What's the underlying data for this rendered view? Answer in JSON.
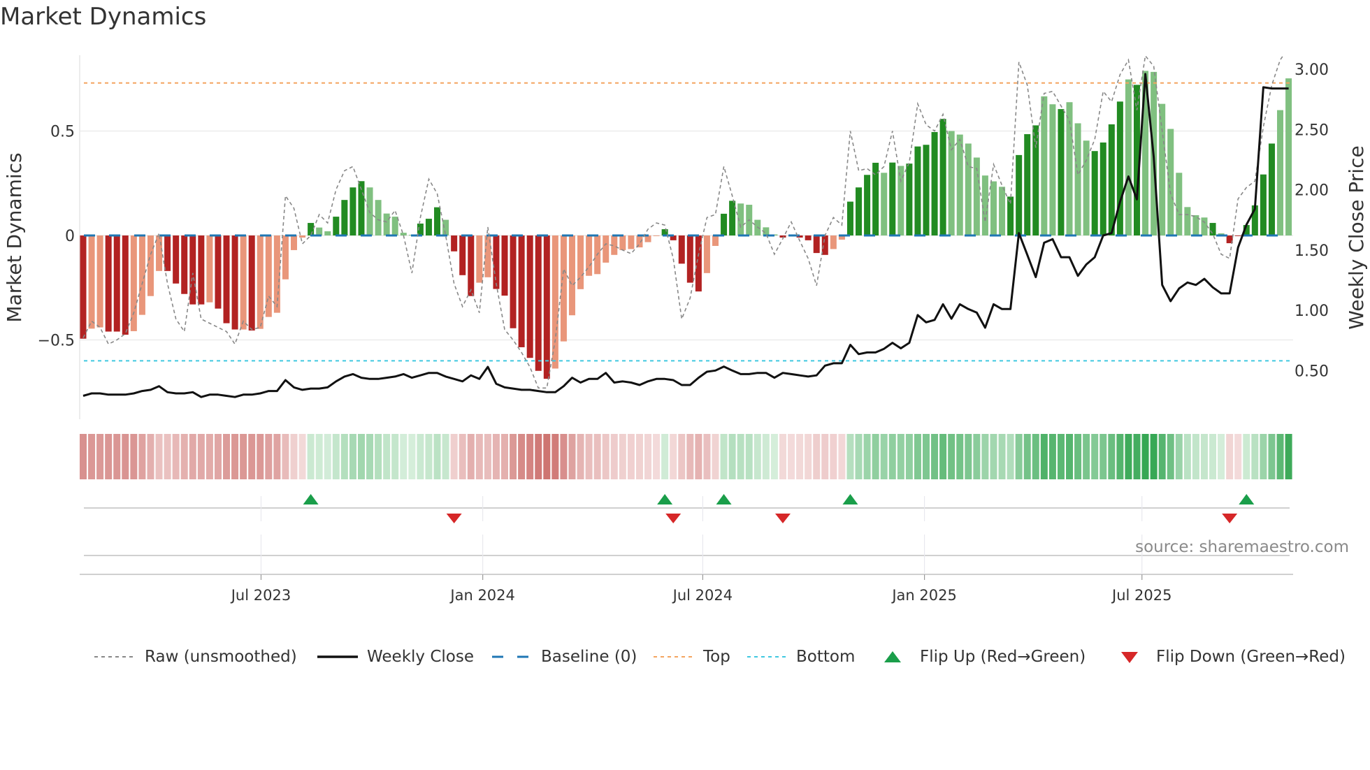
{
  "title": "Market Dynamics",
  "source": "source: sharemaestro.com",
  "legend": [
    {
      "key": "raw",
      "label": "Raw (unsmoothed)"
    },
    {
      "key": "close",
      "label": "Weekly Close"
    },
    {
      "key": "baseline",
      "label": "Baseline (0)"
    },
    {
      "key": "top",
      "label": "Top"
    },
    {
      "key": "bottom",
      "label": "Bottom"
    },
    {
      "key": "flip_up",
      "label": "Flip Up (Red→Green)"
    },
    {
      "key": "flip_down",
      "label": "Flip Down (Green→Red)"
    }
  ],
  "colors": {
    "bar_strong_pos": "#228b22",
    "bar_weak_pos": "#80c080",
    "bar_strong_neg": "#b22222",
    "bar_weak_neg": "#e9967a",
    "raw": "#888888",
    "close": "#111111",
    "baseline": "#1f77b4",
    "top": "#f4a460",
    "bottom": "#40c8e0",
    "flip_up": "#1a9e4a",
    "flip_down": "#d62728"
  },
  "chart_data": {
    "type": "bar",
    "title": "Market Dynamics",
    "ylabel": "Market Dynamics",
    "y2label": "Weekly Close Price",
    "ylim": [
      -0.88,
      0.87
    ],
    "y2lim": [
      0.12,
      3.11
    ],
    "yticks": [
      {
        "v": 0.5,
        "label": "0.5"
      },
      {
        "v": 0,
        "label": "0"
      },
      {
        "v": -0.5,
        "label": "−0.5"
      }
    ],
    "y2ticks": [
      {
        "v": 3.0,
        "label": "3.00"
      },
      {
        "v": 2.5,
        "label": "2.50"
      },
      {
        "v": 2.0,
        "label": "2.00"
      },
      {
        "v": 1.5,
        "label": "1.50"
      },
      {
        "v": 1.0,
        "label": "1.00"
      },
      {
        "v": 0.5,
        "label": "0.50"
      }
    ],
    "x_ticks": [
      {
        "label": "Jul 2023",
        "week": 21.1
      },
      {
        "label": "Jan 2024",
        "week": 47.4
      },
      {
        "label": "Jul 2024",
        "week": 73.5
      },
      {
        "label": "Jan 2025",
        "week": 99.8
      },
      {
        "label": "Jul 2025",
        "week": 125.6
      }
    ],
    "top_level": 0.73,
    "bottom_level": -0.6,
    "baseline": 0,
    "grid": true,
    "legend_position": "bottom",
    "smoothed": [
      -0.494,
      -0.446,
      -0.44,
      -0.46,
      -0.46,
      -0.475,
      -0.458,
      -0.38,
      -0.29,
      -0.17,
      -0.17,
      -0.23,
      -0.28,
      -0.33,
      -0.33,
      -0.32,
      -0.35,
      -0.42,
      -0.45,
      -0.45,
      -0.455,
      -0.447,
      -0.39,
      -0.37,
      -0.21,
      -0.07,
      -0.01,
      0.06,
      0.038,
      0.02,
      0.09,
      0.17,
      0.23,
      0.26,
      0.23,
      0.17,
      0.105,
      0.09,
      0.013,
      0.003,
      0.057,
      0.08,
      0.135,
      0.075,
      -0.076,
      -0.19,
      -0.29,
      -0.226,
      -0.2,
      -0.256,
      -0.288,
      -0.444,
      -0.535,
      -0.586,
      -0.648,
      -0.686,
      -0.637,
      -0.507,
      -0.382,
      -0.257,
      -0.193,
      -0.185,
      -0.13,
      -0.093,
      -0.07,
      -0.065,
      -0.057,
      -0.032,
      -0.003,
      0.03,
      -0.023,
      -0.135,
      -0.226,
      -0.268,
      -0.18,
      -0.05,
      0.104,
      0.166,
      0.153,
      0.147,
      0.075,
      0.039,
      0.005,
      -0.01,
      -0.002,
      -0.01,
      -0.023,
      -0.084,
      -0.093,
      -0.065,
      -0.02,
      0.162,
      0.23,
      0.29,
      0.348,
      0.3,
      0.349,
      0.333,
      0.344,
      0.426,
      0.434,
      0.495,
      0.558,
      0.5,
      0.483,
      0.44,
      0.373,
      0.287,
      0.259,
      0.233,
      0.186,
      0.385,
      0.485,
      0.527,
      0.666,
      0.628,
      0.605,
      0.638,
      0.537,
      0.454,
      0.404,
      0.445,
      0.532,
      0.641,
      0.747,
      0.721,
      0.788,
      0.783,
      0.63,
      0.51,
      0.3,
      0.136,
      0.097,
      0.086,
      0.06,
      0.01,
      -0.037,
      -0.003,
      0.05,
      0.144,
      0.292,
      0.44,
      0.6,
      0.752
    ],
    "shade": "DLLDDDLLLLDDDDDLDDDLDLLLLLLDLLDDDDLLLLLLDDDLDDDLLDDDDDDDLLLLLLLLLLLLLDDDDDLLDDLLLLLDLDDDDLLDDDDLDLDDDDDLLLLLLLDDDDLLDLLLDDDDLDLLLLLLLLDLDDDDDD",
    "raw": [
      -0.49,
      -0.41,
      -0.44,
      -0.52,
      -0.5,
      -0.47,
      -0.37,
      -0.23,
      -0.09,
      0.01,
      -0.23,
      -0.4,
      -0.46,
      -0.18,
      -0.4,
      -0.42,
      -0.44,
      -0.46,
      -0.52,
      -0.41,
      -0.45,
      -0.44,
      -0.29,
      -0.34,
      0.19,
      0.13,
      -0.04,
      0,
      0.1,
      0.06,
      0.22,
      0.31,
      0.33,
      0.22,
      0.11,
      0.075,
      0.065,
      0.12,
      0,
      -0.18,
      0.086,
      0.27,
      0.2,
      0,
      -0.23,
      -0.34,
      -0.26,
      -0.37,
      0.04,
      -0.23,
      -0.45,
      -0.5,
      -0.56,
      -0.63,
      -0.73,
      -0.73,
      -0.5,
      -0.16,
      -0.24,
      -0.2,
      -0.15,
      -0.09,
      -0.04,
      -0.05,
      -0.07,
      -0.087,
      -0.04,
      0.03,
      0.06,
      0.05,
      -0.11,
      -0.4,
      -0.3,
      -0.09,
      0.086,
      0.1,
      0.33,
      0.19,
      0.04,
      0.075,
      0.04,
      0.01,
      -0.09,
      -0.015,
      0.065,
      -0.025,
      -0.11,
      -0.24,
      0,
      0.086,
      0.05,
      0.5,
      0.31,
      0.32,
      0.29,
      0.33,
      0.5,
      0.26,
      0.35,
      0.63,
      0.53,
      0.5,
      0.58,
      0.41,
      0.46,
      0.33,
      0.32,
      0.064,
      0.34,
      0.24,
      0.15,
      0.83,
      0.72,
      0.42,
      0.68,
      0.69,
      0.62,
      0.55,
      0.29,
      0.36,
      0.46,
      0.69,
      0.64,
      0.77,
      0.84,
      0.6,
      0.86,
      0.81,
      0.5,
      0.2,
      0.1,
      0.1,
      0.09,
      0.064,
      0.008,
      -0.09,
      -0.11,
      0.175,
      0.23,
      0.26,
      0.52,
      0.72,
      0.84,
      0.9
    ],
    "close": [
      0.29,
      0.31,
      0.31,
      0.3,
      0.3,
      0.3,
      0.31,
      0.33,
      0.34,
      0.37,
      0.32,
      0.31,
      0.31,
      0.32,
      0.28,
      0.3,
      0.3,
      0.29,
      0.28,
      0.3,
      0.3,
      0.31,
      0.33,
      0.33,
      0.42,
      0.36,
      0.34,
      0.35,
      0.35,
      0.36,
      0.41,
      0.45,
      0.47,
      0.44,
      0.43,
      0.43,
      0.44,
      0.45,
      0.47,
      0.44,
      0.46,
      0.48,
      0.48,
      0.45,
      0.43,
      0.41,
      0.46,
      0.43,
      0.53,
      0.39,
      0.36,
      0.35,
      0.34,
      0.34,
      0.33,
      0.32,
      0.32,
      0.37,
      0.44,
      0.4,
      0.43,
      0.43,
      0.48,
      0.4,
      0.41,
      0.4,
      0.38,
      0.41,
      0.43,
      0.43,
      0.42,
      0.38,
      0.38,
      0.44,
      0.49,
      0.5,
      0.533,
      0.5,
      0.47,
      0.47,
      0.48,
      0.48,
      0.44,
      0.48,
      0.47,
      0.46,
      0.45,
      0.46,
      0.54,
      0.56,
      0.56,
      0.713,
      0.636,
      0.65,
      0.65,
      0.68,
      0.73,
      0.684,
      0.73,
      0.96,
      0.9,
      0.92,
      1.05,
      0.93,
      1.05,
      1.01,
      0.98,
      0.855,
      1.05,
      1.01,
      1.01,
      1.64,
      1.46,
      1.275,
      1.56,
      1.59,
      1.44,
      1.44,
      1.285,
      1.38,
      1.44,
      1.62,
      1.64,
      1.9,
      2.11,
      1.92,
      2.96,
      2.27,
      1.21,
      1.075,
      1.18,
      1.23,
      1.21,
      1.26,
      1.19,
      1.14,
      1.14,
      1.52,
      1.71,
      1.84,
      2.85,
      2.84,
      2.84,
      2.84
    ],
    "flips_up_week": [
      28,
      70,
      77,
      92,
      139
    ],
    "flips_down_week": [
      45,
      71,
      84,
      137
    ]
  }
}
